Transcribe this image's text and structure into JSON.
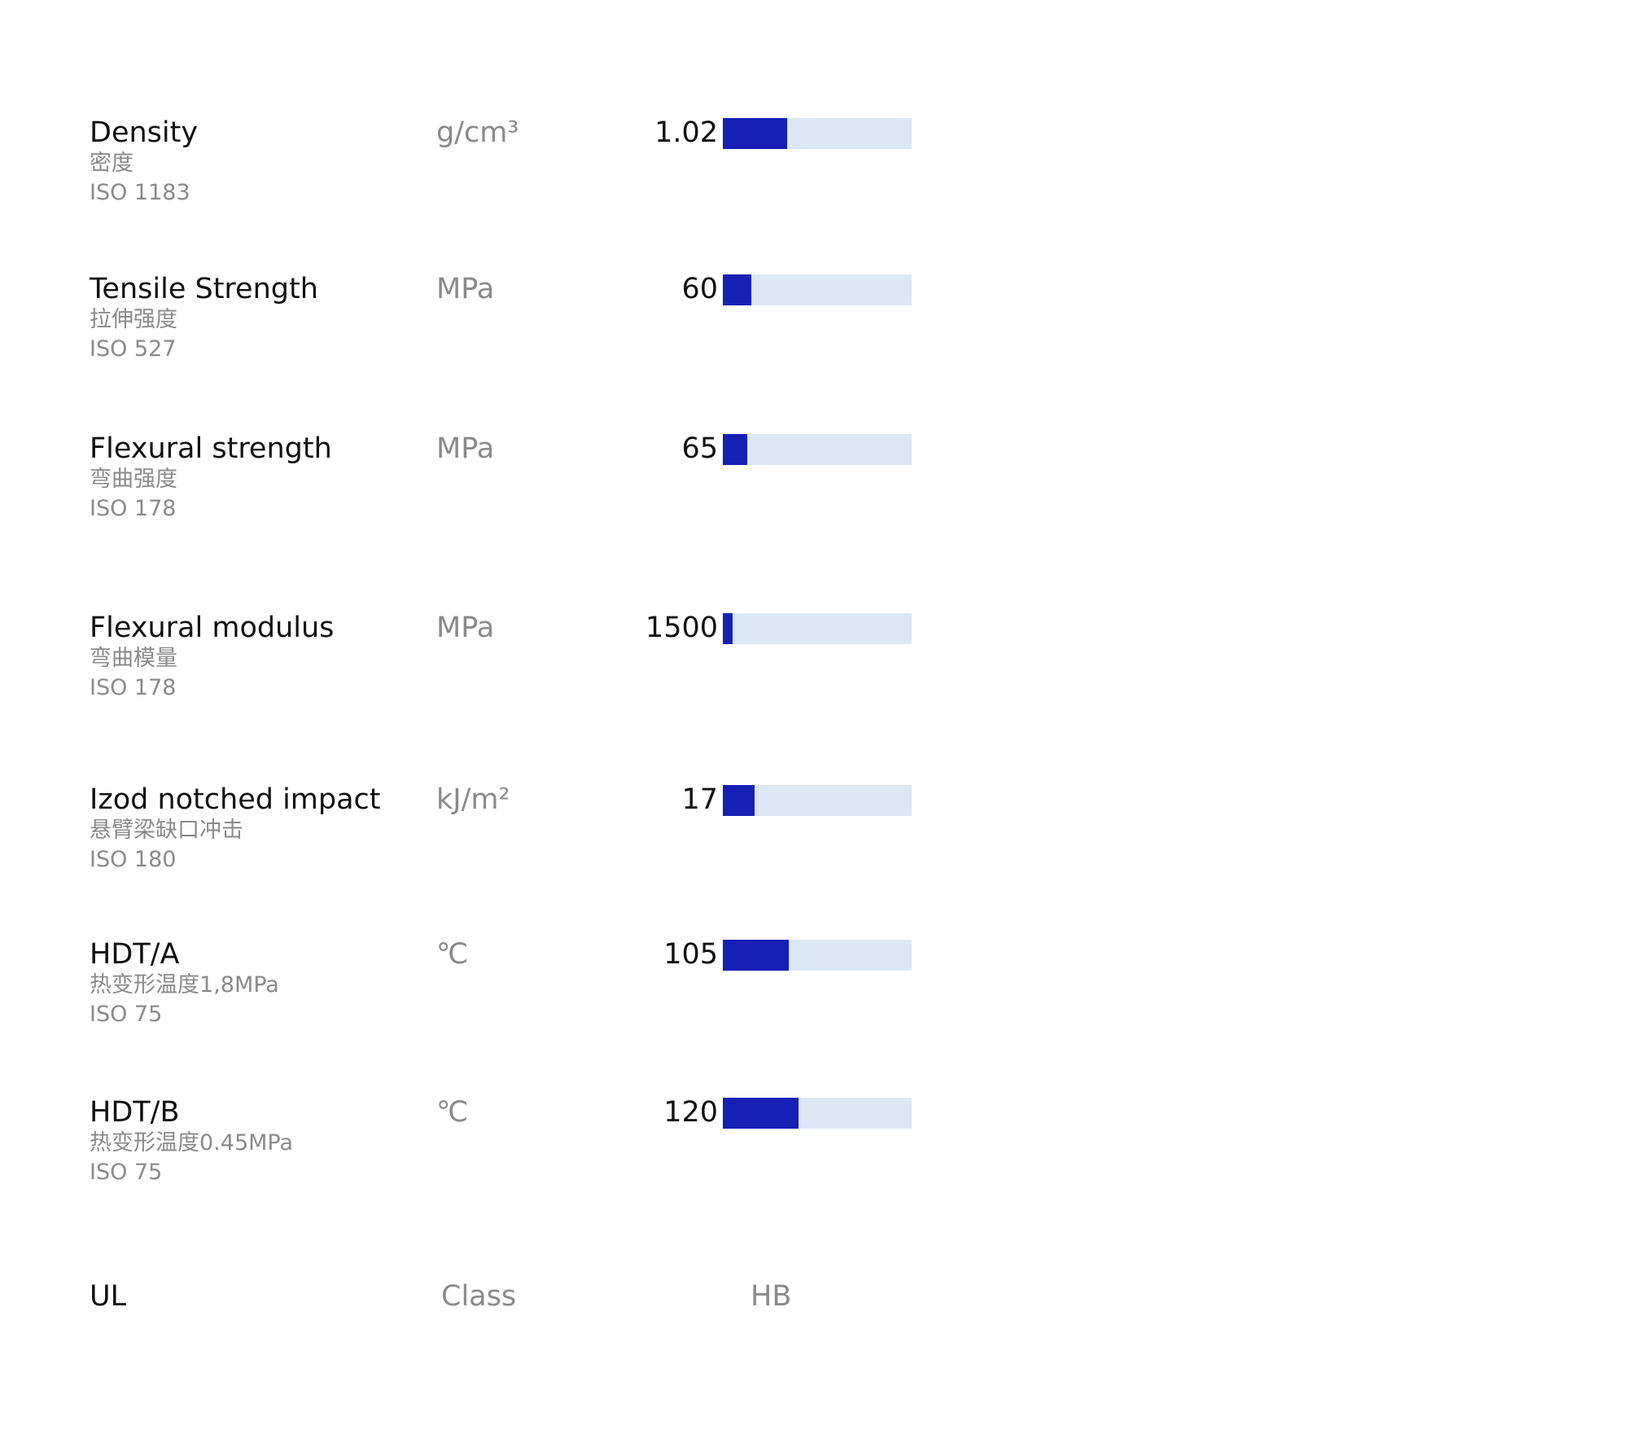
{
  "colors": {
    "bar_fill": "#1720b4",
    "bar_track": "#dde8f5",
    "label_primary": "#111111",
    "label_secondary": "#8a8a8a",
    "background": "#ffffff"
  },
  "chart_data": {
    "type": "bar",
    "orientation": "horizontal",
    "title": "",
    "legend": "none",
    "grid": false,
    "properties": [
      {
        "name_en": "Density",
        "name_zh": "密度",
        "standard": "ISO 1183",
        "unit": "g/cm³",
        "value": 1.02,
        "value_label": "1.02",
        "fill_fraction": 0.34
      },
      {
        "name_en": "Tensile Strength",
        "name_zh": "拉伸强度",
        "standard": "ISO 527",
        "unit": "MPa",
        "value": 60,
        "value_label": "60",
        "fill_fraction": 0.15
      },
      {
        "name_en": "Flexural strength",
        "name_zh": "弯曲强度",
        "standard": "ISO 178",
        "unit": "MPa",
        "value": 65,
        "value_label": "65",
        "fill_fraction": 0.13
      },
      {
        "name_en": "Flexural modulus",
        "name_zh": "弯曲模量",
        "standard": "ISO 178",
        "unit": "MPa",
        "value": 1500,
        "value_label": "1500",
        "fill_fraction": 0.05
      },
      {
        "name_en": "Izod notched impact",
        "name_zh": "悬臂梁缺口冲击",
        "standard": "ISO 180",
        "unit": "kJ/m²",
        "value": 17,
        "value_label": "17",
        "fill_fraction": 0.17
      },
      {
        "name_en": "HDT/A",
        "name_zh": "热变形温度1,8MPa",
        "standard": "ISO 75",
        "unit": "℃",
        "value": 105,
        "value_label": "105",
        "fill_fraction": 0.35
      },
      {
        "name_en": "HDT/B",
        "name_zh": "热变形温度0.45MPa",
        "standard": "ISO 75",
        "unit": "℃",
        "value": 120,
        "value_label": "120",
        "fill_fraction": 0.4
      }
    ],
    "ul": {
      "name_en": "UL",
      "unit": "Class",
      "rating": "HB"
    }
  }
}
